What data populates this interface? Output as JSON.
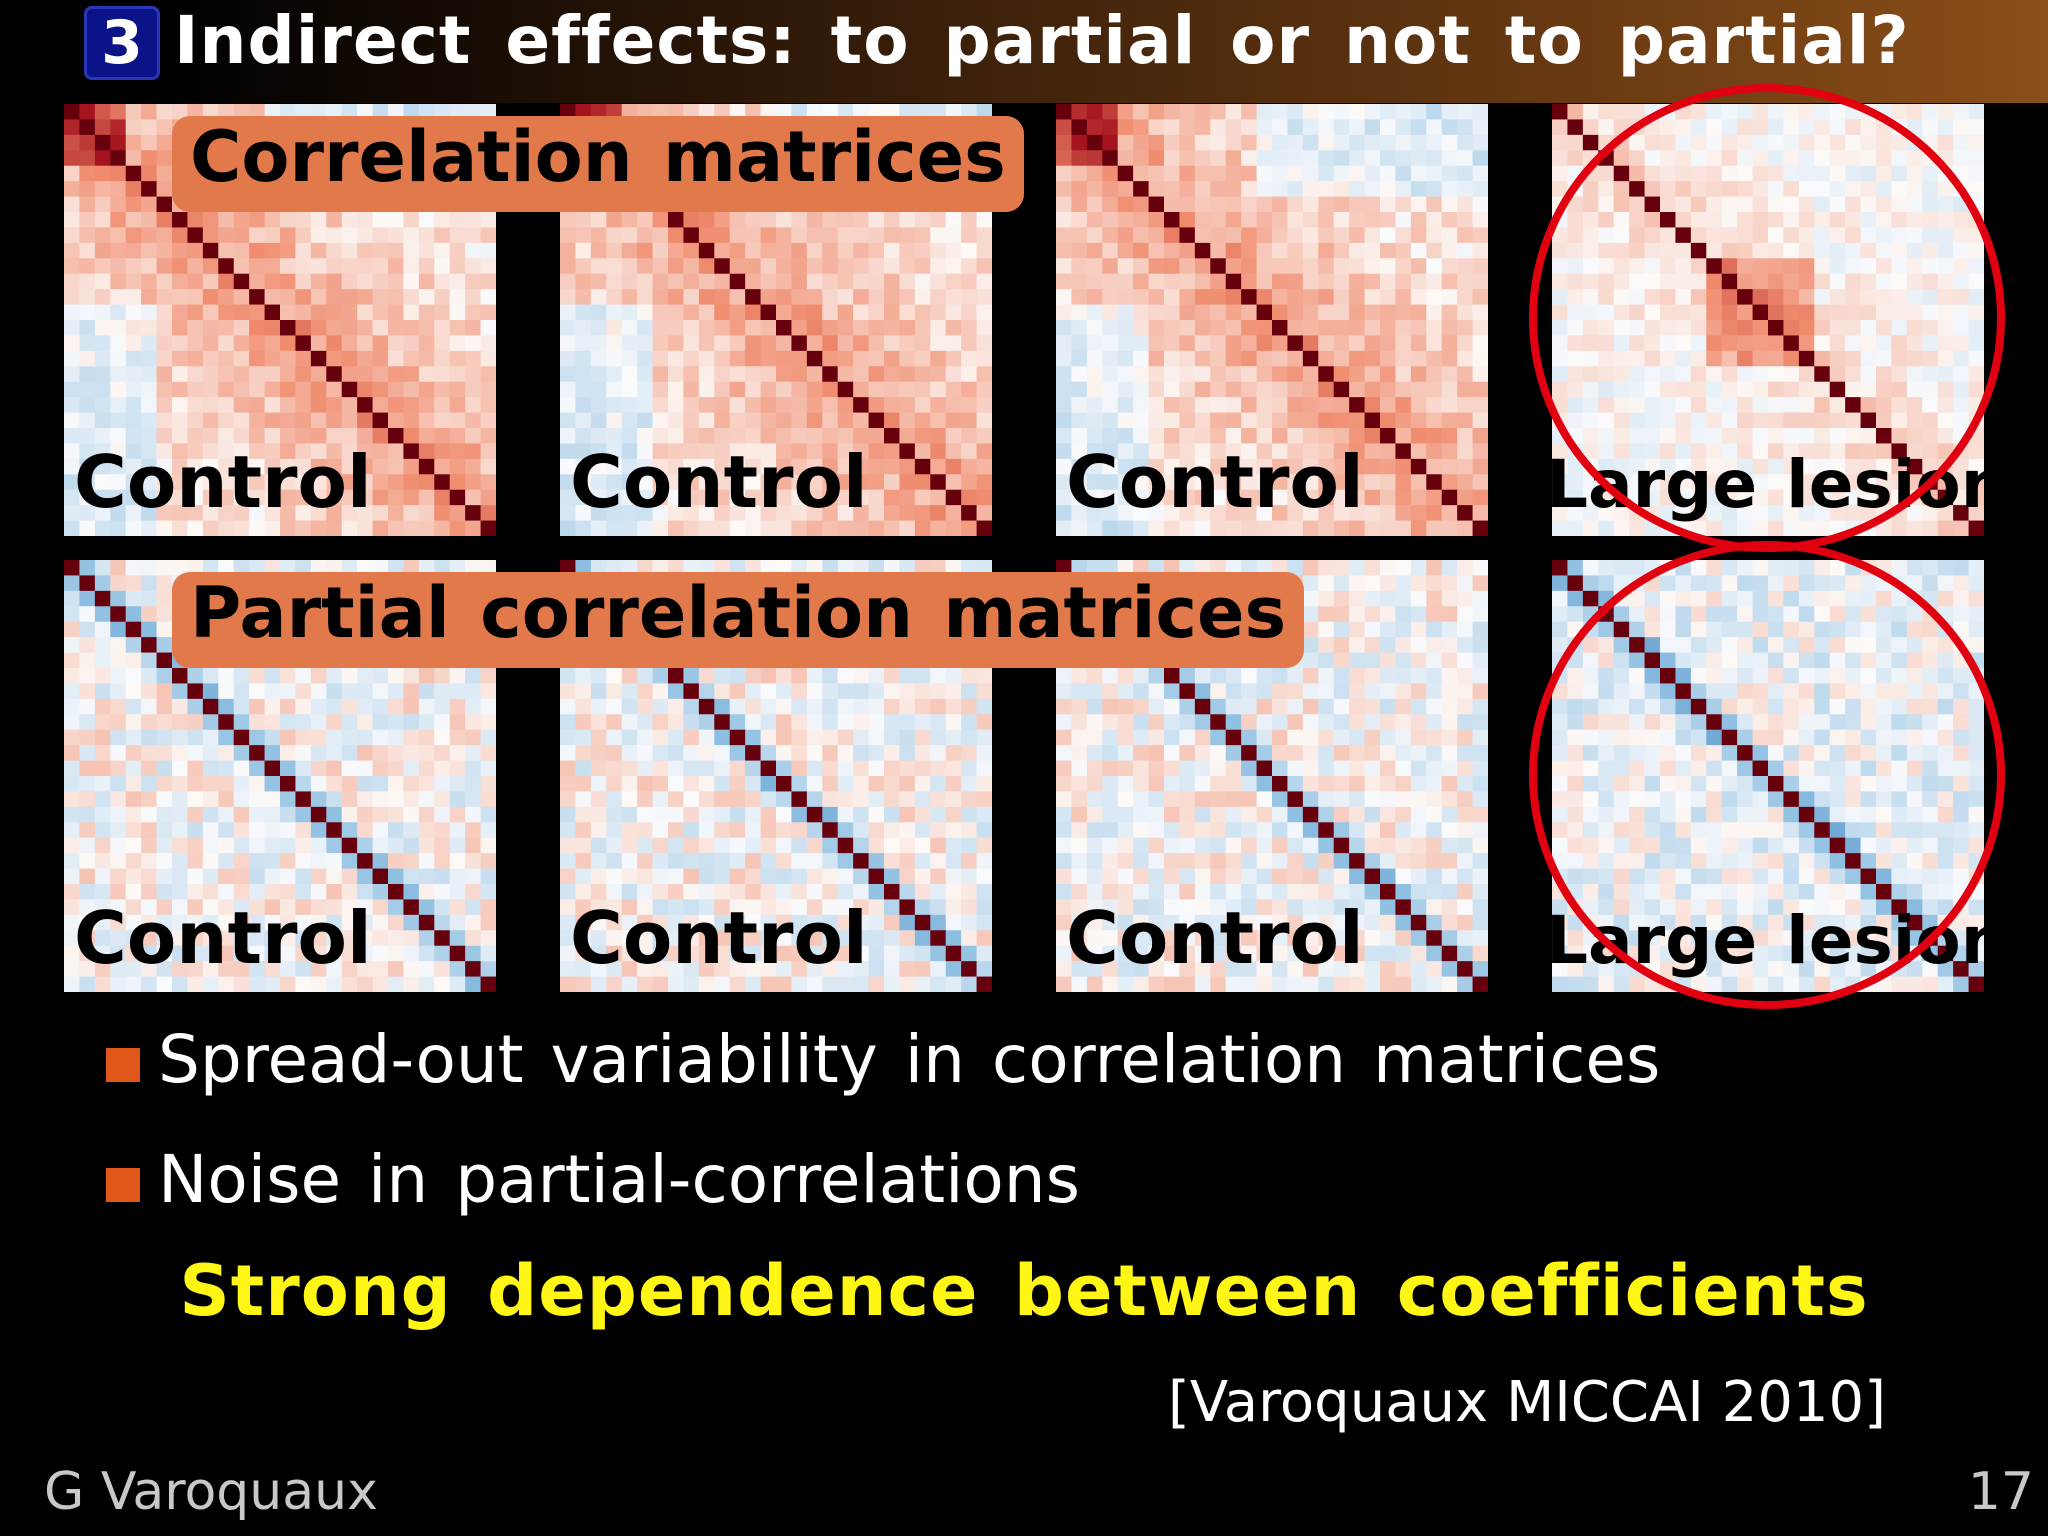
{
  "slide": {
    "section_number": "3",
    "title": "Indirect effects: to partial or not to partial?"
  },
  "tags": {
    "correlation": "Correlation matrices",
    "partial": "Partial correlation matrices"
  },
  "matrices": {
    "top": [
      {
        "label": "Control",
        "kind": "corr",
        "seed": 11
      },
      {
        "label": "Control",
        "kind": "corr",
        "seed": 23
      },
      {
        "label": "Control",
        "kind": "corr",
        "seed": 37
      },
      {
        "label": "Large lesion",
        "kind": "corr-lesion",
        "seed": 41
      }
    ],
    "bottom": [
      {
        "label": "Control",
        "kind": "partial",
        "seed": 53
      },
      {
        "label": "Control",
        "kind": "partial",
        "seed": 67
      },
      {
        "label": "Control",
        "kind": "partial",
        "seed": 71
      },
      {
        "label": "Large lesion",
        "kind": "partial-lesion",
        "seed": 83
      }
    ]
  },
  "bullets": [
    "Spread-out variability in correlation matrices",
    "Noise in partial-correlations"
  ],
  "conclusion": "Strong dependence between coefficients",
  "citation": "[Varoquaux MICCAI 2010]",
  "footer": {
    "author": "G Varoquaux",
    "page": "17"
  },
  "colors": {
    "bullet": "#e05618",
    "tag_bg": "#e2794a",
    "conclusion": "#fff615",
    "circle": "#e00010",
    "diagonal": "#67000d"
  }
}
